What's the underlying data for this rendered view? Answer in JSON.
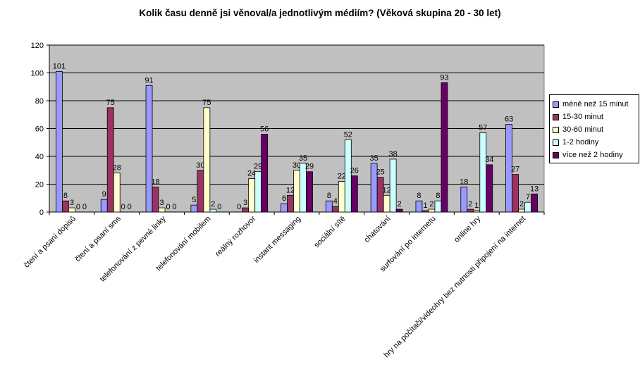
{
  "chart_data": {
    "type": "bar",
    "title": "Kolik času denně jsi věnoval/a jednotlivým médiím? (Věková skupina 20 - 30 let)",
    "xlabel": "",
    "ylabel": "",
    "ylim": [
      0,
      120
    ],
    "yticks": [
      0,
      20,
      40,
      60,
      80,
      100,
      120
    ],
    "grid": true,
    "legend_position": "right",
    "plot_background": "#C0C0C0",
    "categories": [
      "čtení a psaní dopisů",
      "čtení a psaní sms",
      "telefonování z pevné linky",
      "telefonování mobilem",
      "reálný rozhovor",
      "instant messaging",
      "sociální sítě",
      "chatování",
      "surfování po internetu",
      "online hry",
      "hry na počítači/videohry bez nutnosti připojení na internet"
    ],
    "series": [
      {
        "name": "méně než 15 minut",
        "color": "#9999FF",
        "values": [
          101,
          9,
          91,
          5,
          0,
          6,
          8,
          35,
          8,
          18,
          63
        ]
      },
      {
        "name": "15-30 minut",
        "color": "#993366",
        "values": [
          8,
          75,
          18,
          30,
          3,
          12,
          4,
          25,
          1,
          2,
          27
        ]
      },
      {
        "name": "30-60 minut",
        "color": "#FFFFCC",
        "values": [
          3,
          28,
          3,
          75,
          24,
          30,
          22,
          12,
          2,
          1,
          2
        ]
      },
      {
        "name": "1-2 hodiny",
        "color": "#CCFFFF",
        "values": [
          0,
          0,
          0,
          2,
          29,
          35,
          52,
          38,
          8,
          57,
          7
        ]
      },
      {
        "name": "více než 2 hodiny",
        "color": "#660066",
        "values": [
          0,
          0,
          0,
          0,
          56,
          29,
          26,
          2,
          93,
          34,
          13
        ]
      }
    ]
  }
}
